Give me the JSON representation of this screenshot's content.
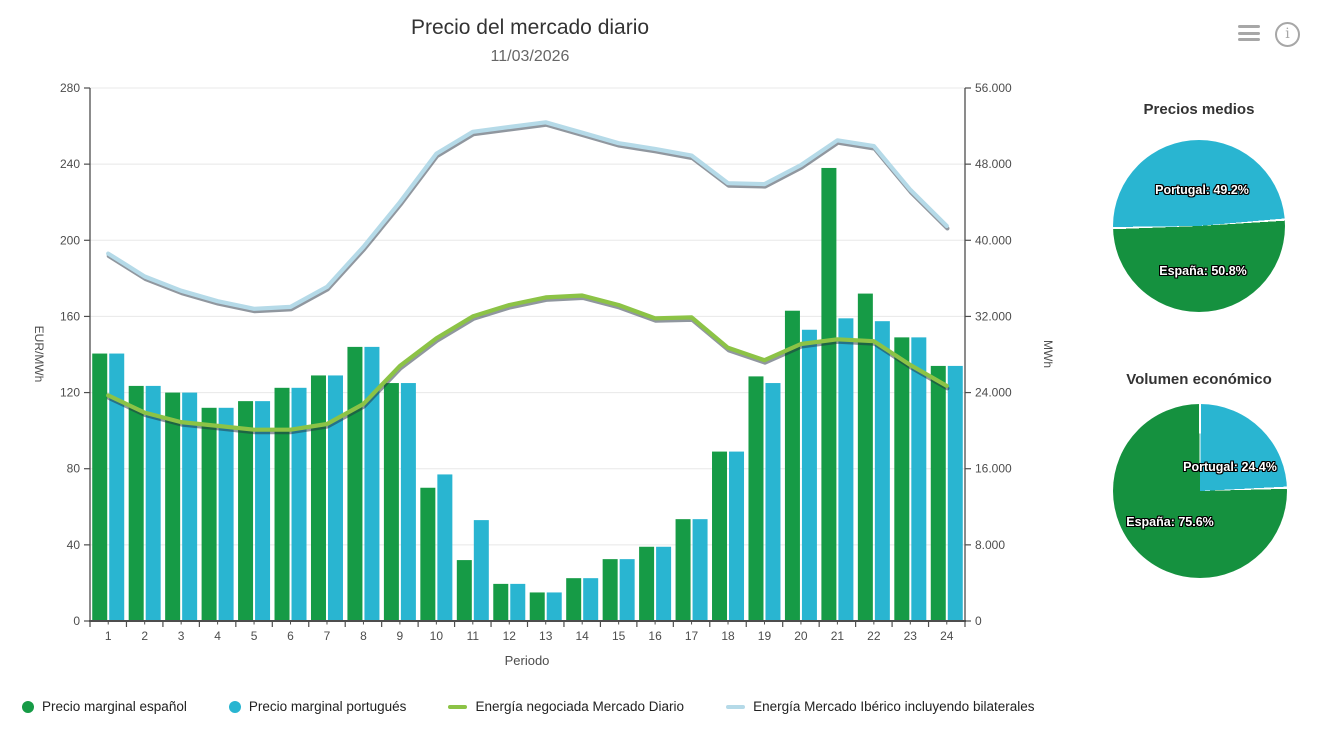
{
  "header": {
    "menu_icon": "hamburger-menu",
    "info_icon": "info-circle"
  },
  "chart_data": {
    "type": "combo-column-line",
    "title": "Precio del mercado diario",
    "subtitle": "11/03/2026",
    "xlabel": "Periodo",
    "grid": true,
    "legend_position": "bottom",
    "categories": [
      "1",
      "2",
      "3",
      "4",
      "5",
      "6",
      "7",
      "8",
      "9",
      "10",
      "11",
      "12",
      "13",
      "14",
      "15",
      "16",
      "17",
      "18",
      "19",
      "20",
      "21",
      "22",
      "23",
      "24"
    ],
    "axes": {
      "left": {
        "title": "EUR/MWh",
        "min": 0,
        "max": 280,
        "ticks": [
          0,
          40,
          80,
          120,
          160,
          200,
          240,
          280
        ]
      },
      "right": {
        "title": "MWh",
        "min": 0,
        "max": 56000,
        "ticks": [
          0,
          8000,
          16000,
          24000,
          32000,
          40000,
          48000,
          56000
        ],
        "tick_labels": [
          "0",
          "8.000",
          "16.000",
          "24.000",
          "32.000",
          "40.000",
          "48.000",
          "56.000"
        ]
      }
    },
    "series": [
      {
        "name": "Precio marginal español",
        "type": "column",
        "axis": "left",
        "marker": "circle",
        "color": "#169B46",
        "values": [
          140.5,
          123.5,
          120,
          112,
          115.5,
          122.5,
          129,
          144,
          125,
          70,
          32,
          19.5,
          15,
          22.5,
          32.5,
          39,
          53.5,
          89,
          128.5,
          163,
          238,
          172,
          149,
          134
        ]
      },
      {
        "name": "Precio marginal portugués",
        "type": "column",
        "axis": "left",
        "marker": "circle",
        "color": "#29B5D1",
        "values": [
          140.5,
          123.5,
          120,
          112,
          115.5,
          122.5,
          129,
          144,
          125,
          77,
          53,
          19.5,
          15,
          22.5,
          32.5,
          39,
          53.5,
          89,
          125,
          153,
          159,
          157.5,
          149,
          134
        ]
      },
      {
        "name": "Energía negociada Mercado Diario",
        "type": "line",
        "axis": "right",
        "marker": "line",
        "color": "#8CC346",
        "values": [
          23700,
          21900,
          20900,
          20500,
          20100,
          20100,
          20700,
          22800,
          26800,
          29700,
          32000,
          33200,
          34000,
          34200,
          33200,
          31800,
          31900,
          28700,
          27400,
          29100,
          29600,
          29400,
          26900,
          24700
        ]
      },
      {
        "name": "Energía Mercado Ibérico incluyendo bilaterales",
        "type": "line",
        "axis": "right",
        "marker": "line",
        "color": "#B5DAE8",
        "values": [
          38600,
          36200,
          34700,
          33600,
          32800,
          33000,
          35100,
          39300,
          44000,
          49100,
          51400,
          51900,
          52400,
          51300,
          50200,
          49600,
          48900,
          46000,
          45900,
          47900,
          50500,
          49900,
          45300,
          41500
        ]
      }
    ]
  },
  "pies": [
    {
      "title": "Precios medios",
      "start_angle": 268.6,
      "slices": [
        {
          "label": "Portugal",
          "pct": 49.2,
          "label_full": "Portugal: 49.2%",
          "color": "#29B5D1"
        },
        {
          "label": "España",
          "pct": 50.8,
          "label_full": "España: 50.8%",
          "color": "#15913F"
        }
      ]
    },
    {
      "title": "Volumen económico",
      "start_angle": 0,
      "slices": [
        {
          "label": "Portugal",
          "pct": 24.4,
          "label_full": "Portugal: 24.4%",
          "color": "#29B5D1"
        },
        {
          "label": "España",
          "pct": 75.6,
          "label_full": "España: 75.6%",
          "color": "#15913F"
        }
      ]
    }
  ]
}
